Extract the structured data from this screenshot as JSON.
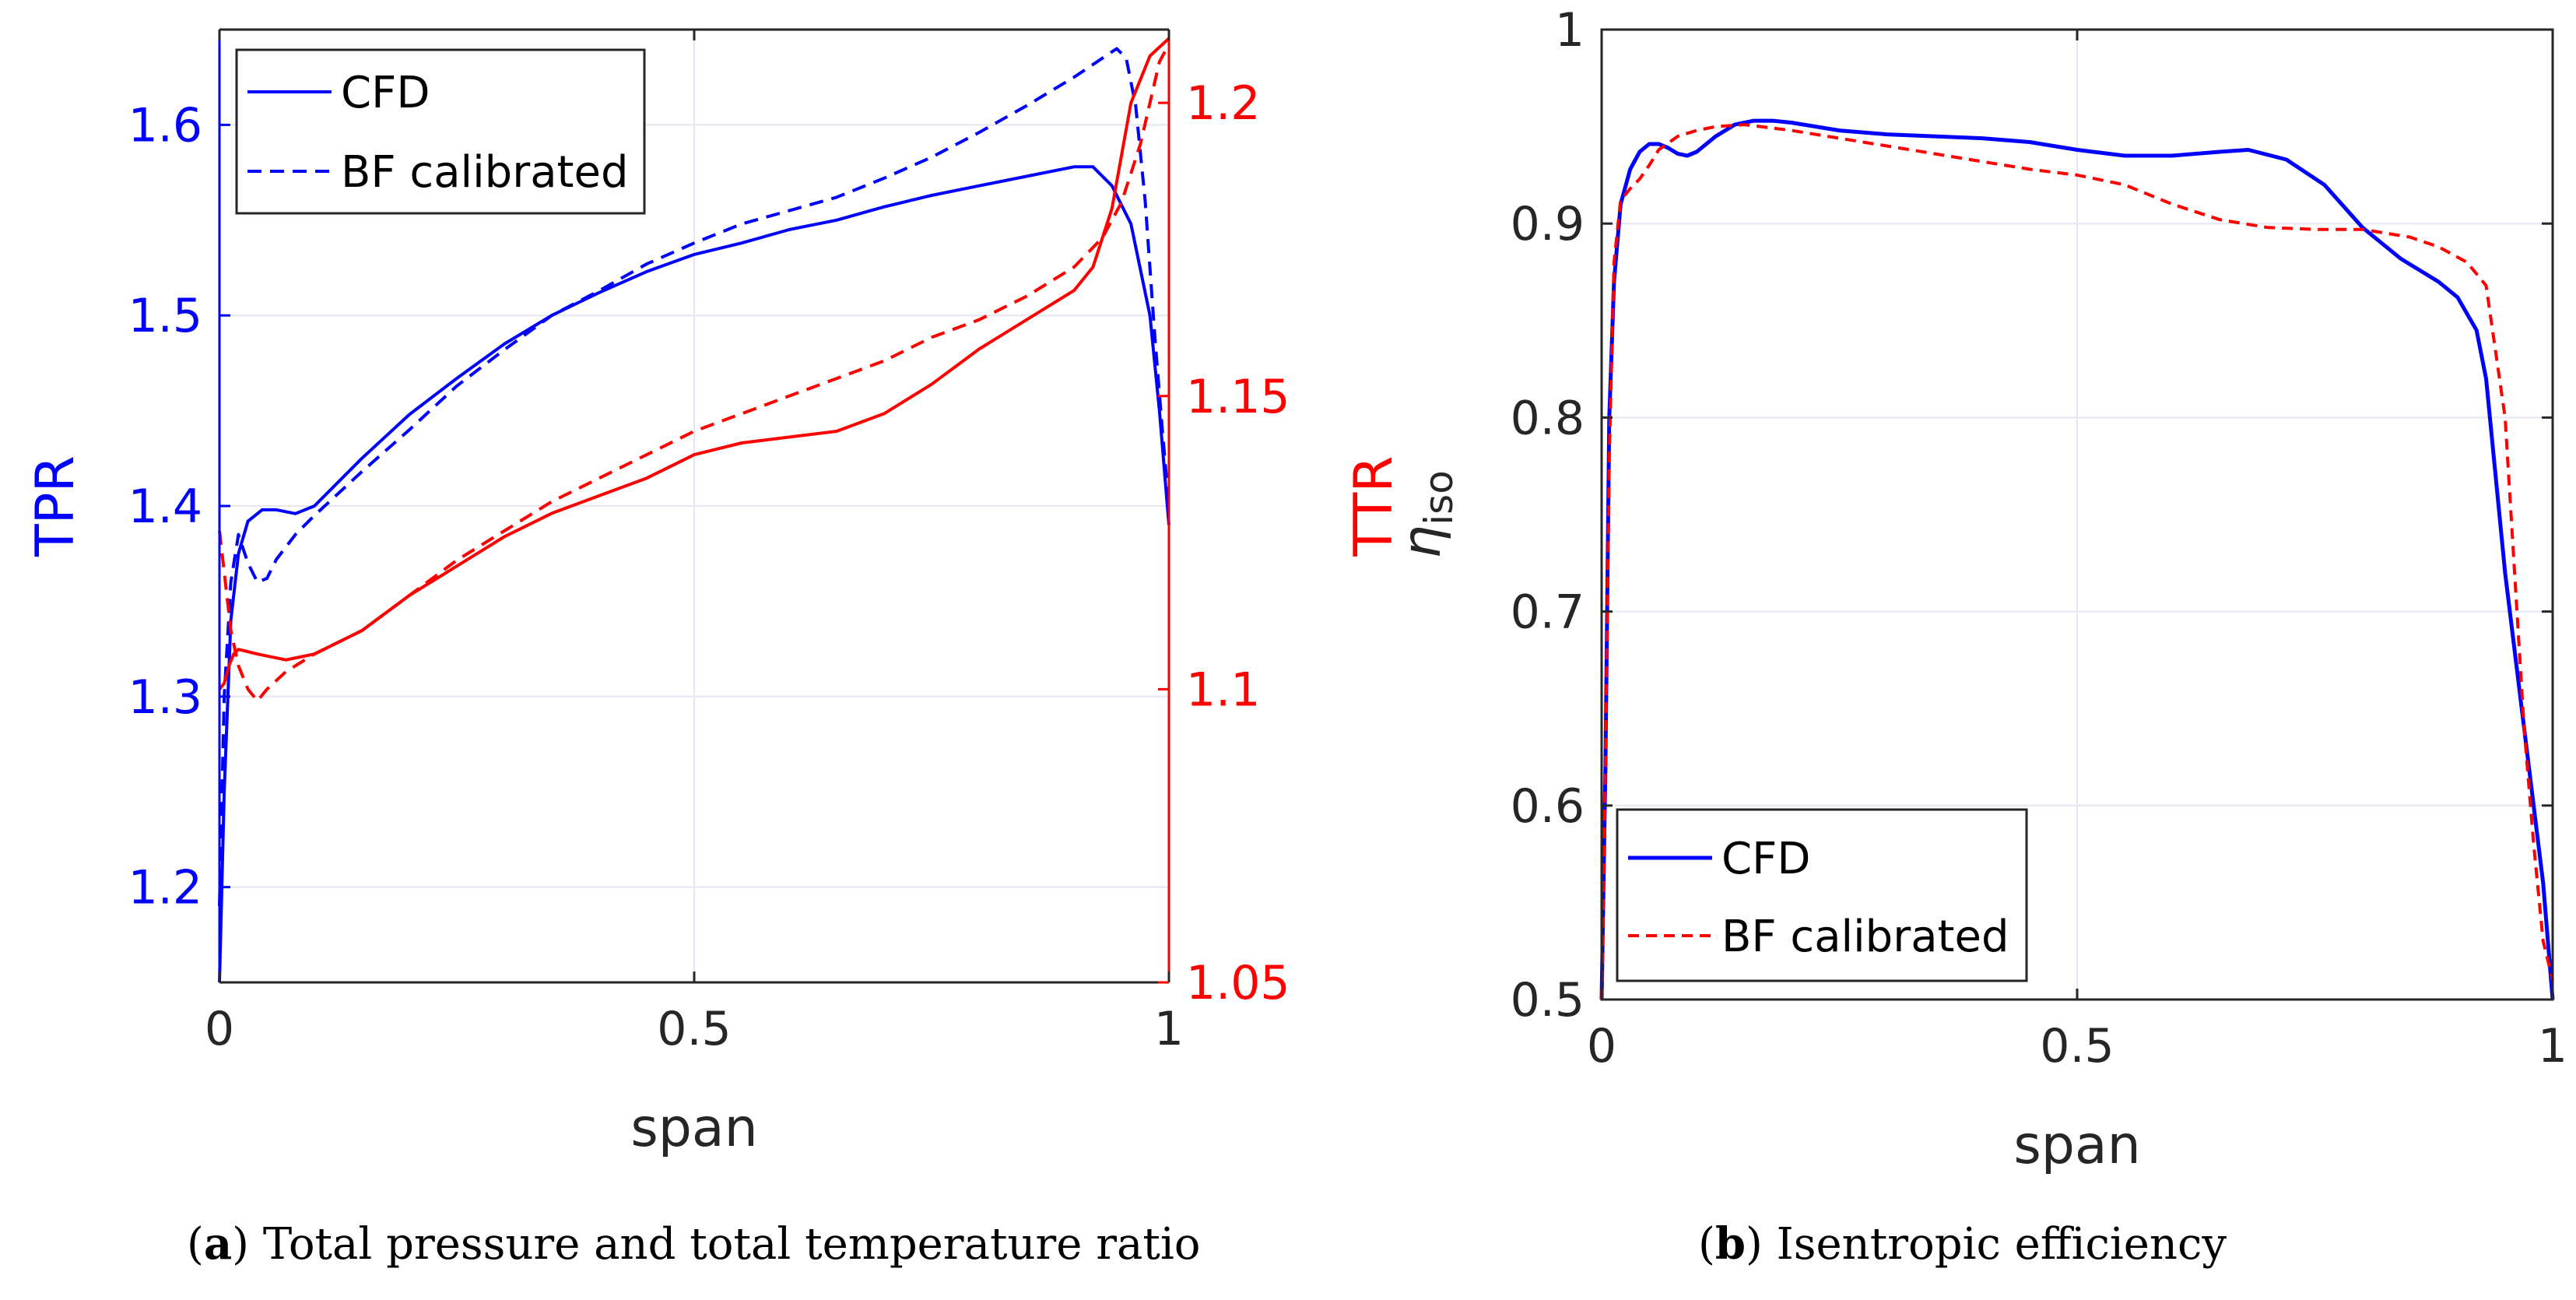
{
  "colors": {
    "blue": "#0000ff",
    "red": "#ff0000",
    "grid": "#e4e6f3",
    "axis": "#262626"
  },
  "captions": {
    "a": {
      "tag": "a",
      "text": "Total pressure and total temperature ratio"
    },
    "b": {
      "tag": "b",
      "text": "Isentropic efficiency"
    }
  },
  "chart_data": [
    {
      "type": "line",
      "id": "a",
      "xlabel": "span",
      "ylabel_left": "TPR",
      "ylabel_right": "TTR",
      "xlim": [
        0,
        1
      ],
      "ylim_left": [
        1.15,
        1.65
      ],
      "ylim_right": [
        1.05,
        1.2125
      ],
      "xticks": [
        "0",
        "0.5",
        "1"
      ],
      "yticks_left": [
        "1.2",
        "1.3",
        "1.4",
        "1.5",
        "1.6"
      ],
      "yticks_right": [
        "1.05",
        "1.1",
        "1.15",
        "1.2"
      ],
      "grid": true,
      "legend": {
        "position": "top-left",
        "entries": [
          "CFD",
          "BF calibrated"
        ]
      },
      "series": [
        {
          "name": "CFD",
          "quantity": "TPR",
          "axis": "left",
          "style": "solid",
          "color": "blue",
          "x": [
            0,
            0.005,
            0.012,
            0.02,
            0.03,
            0.045,
            0.06,
            0.08,
            0.1,
            0.15,
            0.2,
            0.25,
            0.3,
            0.35,
            0.4,
            0.45,
            0.5,
            0.55,
            0.6,
            0.65,
            0.7,
            0.75,
            0.8,
            0.85,
            0.9,
            0.92,
            0.94,
            0.96,
            0.98,
            0.99,
            1.0
          ],
          "y": [
            1.15,
            1.25,
            1.34,
            1.375,
            1.392,
            1.398,
            1.398,
            1.396,
            1.4,
            1.425,
            1.448,
            1.467,
            1.485,
            1.5,
            1.512,
            1.523,
            1.532,
            1.538,
            1.545,
            1.55,
            1.557,
            1.563,
            1.568,
            1.573,
            1.578,
            1.578,
            1.568,
            1.548,
            1.5,
            1.45,
            1.39
          ]
        },
        {
          "name": "BF calibrated",
          "quantity": "TPR",
          "axis": "left",
          "style": "dashed",
          "color": "blue",
          "x": [
            0,
            0.005,
            0.012,
            0.02,
            0.03,
            0.04,
            0.05,
            0.06,
            0.08,
            0.1,
            0.15,
            0.2,
            0.25,
            0.3,
            0.35,
            0.4,
            0.45,
            0.5,
            0.55,
            0.6,
            0.65,
            0.7,
            0.75,
            0.8,
            0.85,
            0.9,
            0.93,
            0.945,
            0.955,
            0.965,
            0.975,
            0.985,
            0.993,
            1.0
          ],
          "y": [
            1.19,
            1.3,
            1.36,
            1.385,
            1.37,
            1.36,
            1.362,
            1.372,
            1.385,
            1.395,
            1.418,
            1.44,
            1.463,
            1.482,
            1.5,
            1.513,
            1.527,
            1.538,
            1.548,
            1.555,
            1.562,
            1.572,
            1.583,
            1.596,
            1.61,
            1.625,
            1.635,
            1.64,
            1.635,
            1.61,
            1.56,
            1.49,
            1.44,
            1.4
          ]
        },
        {
          "name": "CFD",
          "quantity": "TTR",
          "axis": "right",
          "style": "solid",
          "color": "red",
          "x": [
            0,
            0.005,
            0.01,
            0.015,
            0.02,
            0.04,
            0.07,
            0.1,
            0.15,
            0.2,
            0.25,
            0.3,
            0.35,
            0.4,
            0.45,
            0.5,
            0.55,
            0.6,
            0.65,
            0.7,
            0.75,
            0.8,
            0.85,
            0.9,
            0.92,
            0.94,
            0.96,
            0.98,
            1.0
          ],
          "y": [
            1.1,
            1.101,
            1.104,
            1.106,
            1.1068,
            1.106,
            1.105,
            1.106,
            1.11,
            1.116,
            1.121,
            1.126,
            1.13,
            1.133,
            1.136,
            1.14,
            1.142,
            1.143,
            1.144,
            1.147,
            1.152,
            1.158,
            1.163,
            1.168,
            1.172,
            1.182,
            1.2,
            1.208,
            1.211
          ]
        },
        {
          "name": "BF calibrated",
          "quantity": "TTR",
          "axis": "right",
          "style": "dashed",
          "color": "red",
          "x": [
            0,
            0.005,
            0.012,
            0.02,
            0.03,
            0.04,
            0.05,
            0.07,
            0.1,
            0.15,
            0.2,
            0.25,
            0.3,
            0.35,
            0.4,
            0.45,
            0.5,
            0.55,
            0.6,
            0.65,
            0.7,
            0.75,
            0.8,
            0.85,
            0.9,
            0.93,
            0.95,
            0.97,
            0.98,
            0.99,
            1.0
          ],
          "y": [
            1.127,
            1.12,
            1.11,
            1.104,
            1.1,
            1.098,
            1.1,
            1.103,
            1.106,
            1.11,
            1.116,
            1.122,
            1.127,
            1.132,
            1.136,
            1.14,
            1.144,
            1.147,
            1.15,
            1.153,
            1.156,
            1.16,
            1.163,
            1.167,
            1.172,
            1.177,
            1.183,
            1.193,
            1.2,
            1.207,
            1.21
          ]
        }
      ]
    },
    {
      "type": "line",
      "id": "b",
      "xlabel": "span",
      "ylabel": "η_iso",
      "ylabel_symbol": "η",
      "ylabel_subscript": "iso",
      "xlim": [
        0,
        1
      ],
      "ylim": [
        0.5,
        1
      ],
      "xticks": [
        "0",
        "0.5",
        "1"
      ],
      "yticks": [
        "0.5",
        "0.6",
        "0.7",
        "0.8",
        "0.9",
        "1"
      ],
      "grid": true,
      "legend": {
        "position": "bottom-left",
        "entries": [
          "CFD",
          "BF calibrated"
        ]
      },
      "series": [
        {
          "name": "CFD",
          "style": "solid",
          "color": "blue",
          "x": [
            0,
            0.004,
            0.008,
            0.013,
            0.02,
            0.03,
            0.04,
            0.05,
            0.06,
            0.07,
            0.08,
            0.09,
            0.1,
            0.12,
            0.14,
            0.16,
            0.18,
            0.2,
            0.25,
            0.3,
            0.35,
            0.4,
            0.45,
            0.5,
            0.55,
            0.6,
            0.65,
            0.68,
            0.72,
            0.76,
            0.8,
            0.84,
            0.88,
            0.9,
            0.92,
            0.93,
            0.95,
            0.97,
            0.99,
            1.0
          ],
          "y": [
            0.5,
            0.62,
            0.8,
            0.87,
            0.91,
            0.928,
            0.937,
            0.941,
            0.941,
            0.939,
            0.936,
            0.935,
            0.937,
            0.945,
            0.951,
            0.953,
            0.953,
            0.952,
            0.948,
            0.946,
            0.945,
            0.944,
            0.942,
            0.938,
            0.935,
            0.935,
            0.937,
            0.938,
            0.933,
            0.92,
            0.898,
            0.882,
            0.87,
            0.862,
            0.845,
            0.82,
            0.72,
            0.64,
            0.56,
            0.5
          ]
        },
        {
          "name": "BF calibrated",
          "style": "dashed",
          "color": "red",
          "x": [
            0,
            0.004,
            0.008,
            0.013,
            0.02,
            0.03,
            0.04,
            0.05,
            0.06,
            0.08,
            0.1,
            0.12,
            0.15,
            0.2,
            0.25,
            0.3,
            0.35,
            0.4,
            0.45,
            0.5,
            0.55,
            0.6,
            0.65,
            0.7,
            0.75,
            0.8,
            0.85,
            0.88,
            0.91,
            0.93,
            0.95,
            0.96,
            0.97,
            0.98,
            0.99,
            1.0
          ],
          "y": [
            0.5,
            0.62,
            0.78,
            0.88,
            0.912,
            0.918,
            0.923,
            0.93,
            0.938,
            0.945,
            0.948,
            0.95,
            0.951,
            0.948,
            0.944,
            0.94,
            0.936,
            0.932,
            0.928,
            0.925,
            0.92,
            0.91,
            0.902,
            0.898,
            0.897,
            0.897,
            0.893,
            0.888,
            0.88,
            0.868,
            0.8,
            0.72,
            0.64,
            0.58,
            0.53,
            0.51
          ]
        }
      ]
    }
  ]
}
